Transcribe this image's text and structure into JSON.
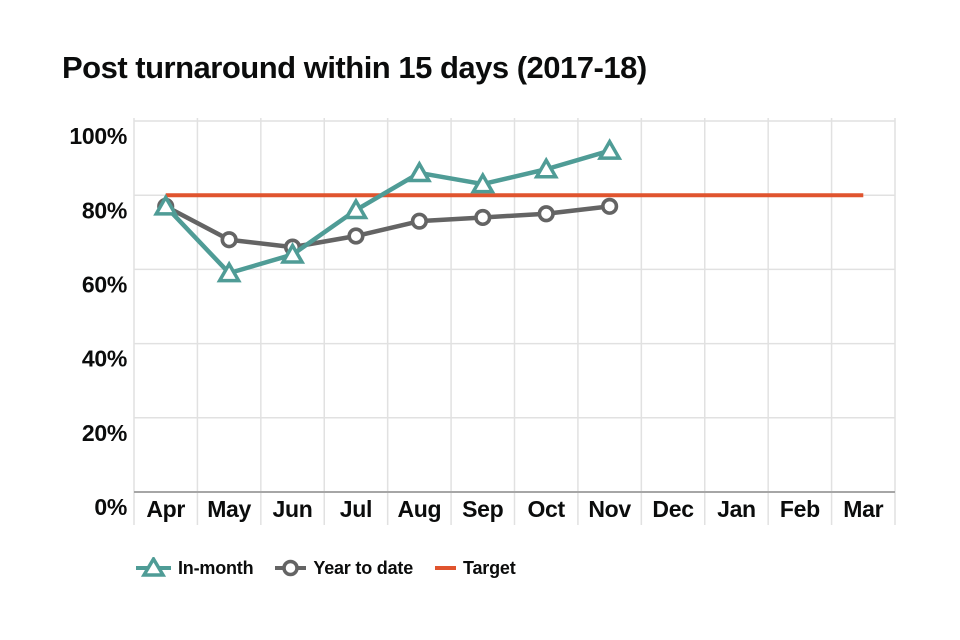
{
  "title": "Post turnaround within 15 days (2017-18)",
  "colors": {
    "in_month": "#4f9c96",
    "year_to_date": "#646464",
    "target": "#e0542e",
    "grid": "#e1e1e1",
    "axis": "#a6a6a6",
    "text": "#0b0c0c",
    "background": "#ffffff",
    "marker_fill": "#ffffff"
  },
  "legend": {
    "items": [
      {
        "label": "In-month",
        "marker": "triangle",
        "series": "in_month"
      },
      {
        "label": "Year to date",
        "marker": "circle",
        "series": "year_to_date"
      },
      {
        "label": "Target",
        "marker": "line",
        "series": "target"
      }
    ]
  },
  "chart_data": {
    "type": "line",
    "title": "Post turnaround within 15 days (2017-18)",
    "categories": [
      "Apr",
      "May",
      "Jun",
      "Jul",
      "Aug",
      "Sep",
      "Oct",
      "Nov",
      "Dec",
      "Jan",
      "Feb",
      "Mar"
    ],
    "series": [
      {
        "name": "In-month",
        "marker": "triangle",
        "color": "#4f9c96",
        "values": [
          77,
          59,
          64,
          76,
          86,
          83,
          87,
          92,
          null,
          null,
          null,
          null
        ]
      },
      {
        "name": "Year to date",
        "marker": "circle",
        "color": "#646464",
        "values": [
          77,
          68,
          66,
          69,
          73,
          74,
          75,
          77,
          null,
          null,
          null,
          null
        ]
      }
    ],
    "target": {
      "name": "Target",
      "value": 80,
      "color": "#e0542e",
      "from_category": "Apr",
      "to_category": "Mar"
    },
    "xlabel": "",
    "ylabel": "",
    "ylim": [
      0,
      100
    ],
    "y_ticks": [
      100,
      80,
      60,
      40,
      20,
      0
    ],
    "y_tick_suffix": "%",
    "grid": true,
    "legend_position": "bottom"
  }
}
